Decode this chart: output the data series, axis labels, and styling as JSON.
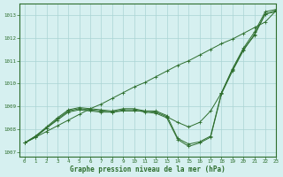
{
  "title": "Graphe pression niveau de la mer (hPa)",
  "background_color": "#d6f0f0",
  "grid_color": "#aad4d4",
  "line_color": "#2d6e2d",
  "xlim": [
    -0.5,
    23
  ],
  "ylim": [
    1006.8,
    1013.5
  ],
  "yticks": [
    1007,
    1008,
    1009,
    1010,
    1011,
    1012,
    1013
  ],
  "xticks": [
    0,
    1,
    2,
    3,
    4,
    5,
    6,
    7,
    8,
    9,
    10,
    11,
    12,
    13,
    14,
    15,
    16,
    17,
    18,
    19,
    20,
    21,
    22,
    23
  ],
  "series": [
    {
      "x": [
        0,
        1,
        2,
        3,
        4,
        5,
        6,
        7,
        8,
        9,
        10,
        11,
        12,
        13,
        14,
        15,
        16,
        17,
        18,
        19,
        20,
        21,
        22,
        23
      ],
      "y": [
        1007.4,
        1007.65,
        1007.9,
        1008.15,
        1008.4,
        1008.65,
        1008.9,
        1009.1,
        1009.35,
        1009.6,
        1009.85,
        1010.05,
        1010.3,
        1010.55,
        1010.8,
        1011.0,
        1011.25,
        1011.5,
        1011.75,
        1011.95,
        1012.2,
        1012.45,
        1012.7,
        1013.2
      ]
    },
    {
      "x": [
        0,
        1,
        2,
        3,
        4,
        5,
        6,
        7,
        8,
        9,
        10,
        11,
        12,
        13,
        14,
        15,
        16,
        17,
        18,
        19,
        20,
        21,
        22,
        23
      ],
      "y": [
        1007.4,
        1007.65,
        1008.05,
        1008.4,
        1008.75,
        1008.85,
        1008.8,
        1008.75,
        1008.75,
        1008.8,
        1008.8,
        1008.8,
        1008.75,
        1008.55,
        1008.3,
        1008.1,
        1008.3,
        1008.8,
        1009.6,
        1010.6,
        1011.5,
        1012.1,
        1013.05,
        1013.2
      ]
    },
    {
      "x": [
        0,
        1,
        2,
        3,
        4,
        5,
        6,
        7,
        8,
        9,
        10,
        11,
        12,
        13,
        14,
        15,
        16,
        17,
        18,
        19,
        20,
        21,
        22,
        23
      ],
      "y": [
        1007.4,
        1007.7,
        1008.05,
        1008.45,
        1008.8,
        1008.9,
        1008.85,
        1008.8,
        1008.75,
        1008.85,
        1008.85,
        1008.75,
        1008.7,
        1008.5,
        1007.55,
        1007.25,
        1007.4,
        1007.65,
        1009.55,
        1010.55,
        1011.45,
        1012.15,
        1013.05,
        1013.15
      ]
    },
    {
      "x": [
        0,
        1,
        2,
        3,
        4,
        5,
        6,
        7,
        8,
        9,
        10,
        11,
        12,
        13,
        14,
        15,
        16,
        17,
        18,
        19,
        20,
        21,
        22,
        23
      ],
      "y": [
        1007.4,
        1007.7,
        1008.1,
        1008.5,
        1008.85,
        1008.95,
        1008.9,
        1008.85,
        1008.8,
        1008.9,
        1008.9,
        1008.8,
        1008.8,
        1008.6,
        1007.6,
        1007.35,
        1007.45,
        1007.7,
        1009.6,
        1010.65,
        1011.55,
        1012.25,
        1013.15,
        1013.25
      ]
    }
  ]
}
